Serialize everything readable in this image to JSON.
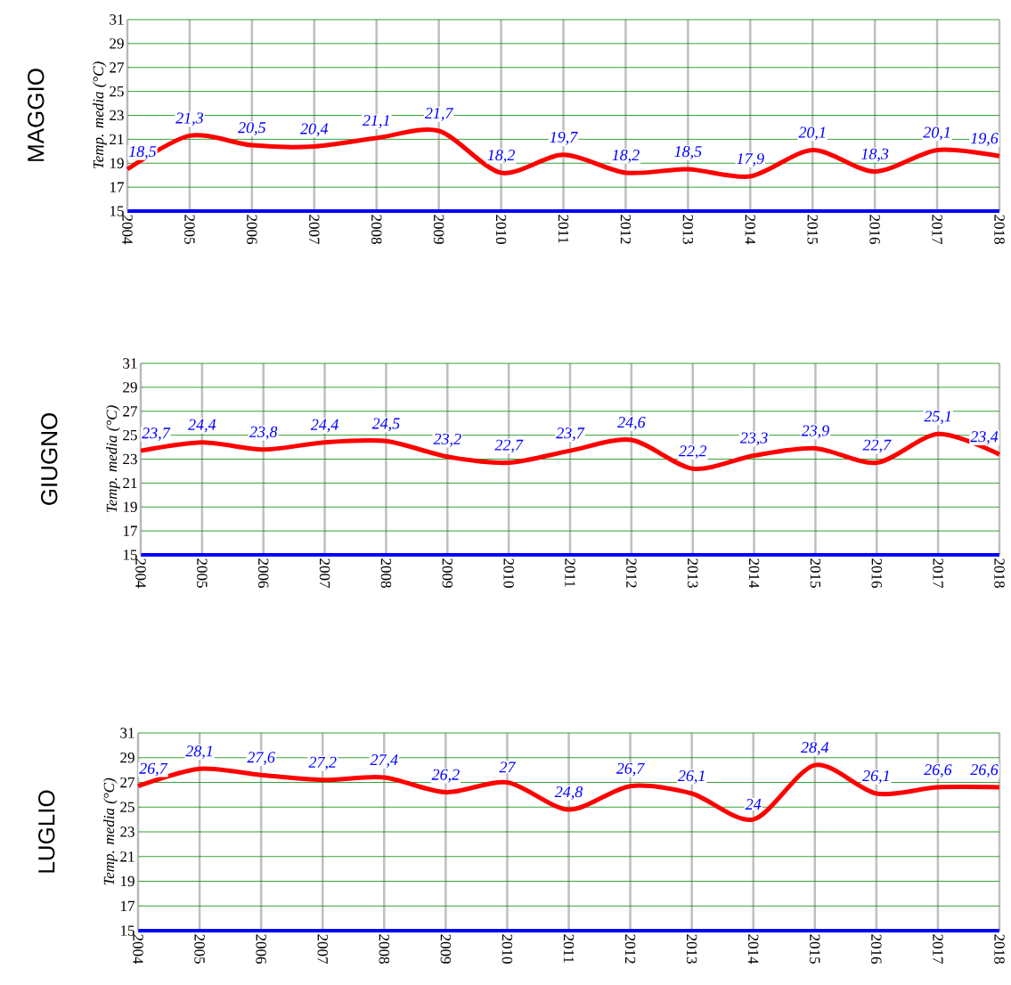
{
  "chart_data": [
    {
      "type": "line",
      "title": "MAGGIO",
      "ylabel": "Temp. media (°C)",
      "categories": [
        "2004",
        "2005",
        "2006",
        "2007",
        "2008",
        "2009",
        "2010",
        "2011",
        "2012",
        "2013",
        "2014",
        "2015",
        "2016",
        "2017",
        "2018"
      ],
      "values": [
        18.5,
        21.3,
        20.5,
        20.4,
        21.1,
        21.7,
        18.2,
        19.7,
        18.2,
        18.5,
        17.9,
        20.1,
        18.3,
        20.1,
        19.6
      ],
      "value_labels": [
        "18,5",
        "21,3",
        "20,5",
        "20,4",
        "21,1",
        "21,7",
        "18,2",
        "19,7",
        "18,2",
        "18,5",
        "17,9",
        "20,1",
        "18,3",
        "20,1",
        "19,6"
      ],
      "color": "#ff0000",
      "ylim": [
        15,
        31
      ],
      "yticks": [
        15,
        17,
        19,
        21,
        23,
        25,
        27,
        29,
        31
      ],
      "grid": true
    },
    {
      "type": "line",
      "title": "GIUGNO",
      "ylabel": "Temp. media (°C)",
      "categories": [
        "2004",
        "2005",
        "2006",
        "2007",
        "2008",
        "2009",
        "2010",
        "2011",
        "2012",
        "2013",
        "2014",
        "2015",
        "2016",
        "2017",
        "2018"
      ],
      "values": [
        23.7,
        24.4,
        23.8,
        24.4,
        24.5,
        23.2,
        22.7,
        23.7,
        24.6,
        22.2,
        23.3,
        23.9,
        22.7,
        25.1,
        23.4
      ],
      "value_labels": [
        "23,7",
        "24,4",
        "23,8",
        "24,4",
        "24,5",
        "23,2",
        "22,7",
        "23,7",
        "24,6",
        "22,2",
        "23,3",
        "23,9",
        "22,7",
        "25,1",
        "23,4"
      ],
      "color": "#ff0000",
      "ylim": [
        15,
        31
      ],
      "yticks": [
        15,
        17,
        19,
        21,
        23,
        25,
        27,
        29,
        31
      ],
      "grid": true
    },
    {
      "type": "line",
      "title": "LUGLIO",
      "ylabel": "Temp. media (°C)",
      "categories": [
        "2004",
        "2005",
        "2006",
        "2007",
        "2008",
        "2009",
        "2010",
        "2011",
        "2012",
        "2013",
        "2014",
        "2015",
        "2016",
        "2017",
        "2018"
      ],
      "values": [
        26.7,
        28.1,
        27.6,
        27.2,
        27.4,
        26.2,
        27,
        24.8,
        26.7,
        26.1,
        24,
        28.4,
        26.1,
        26.6,
        26.6
      ],
      "value_labels": [
        "26,7",
        "28,1",
        "27,6",
        "27,2",
        "27,4",
        "26,2",
        "27",
        "24,8",
        "26,7",
        "26,1",
        "24",
        "28,4",
        "26,1",
        "26,6",
        "26,6"
      ],
      "color": "#ff0000",
      "ylim": [
        15,
        31
      ],
      "yticks": [
        15,
        17,
        19,
        21,
        23,
        25,
        27,
        29,
        31
      ],
      "grid": true
    }
  ]
}
